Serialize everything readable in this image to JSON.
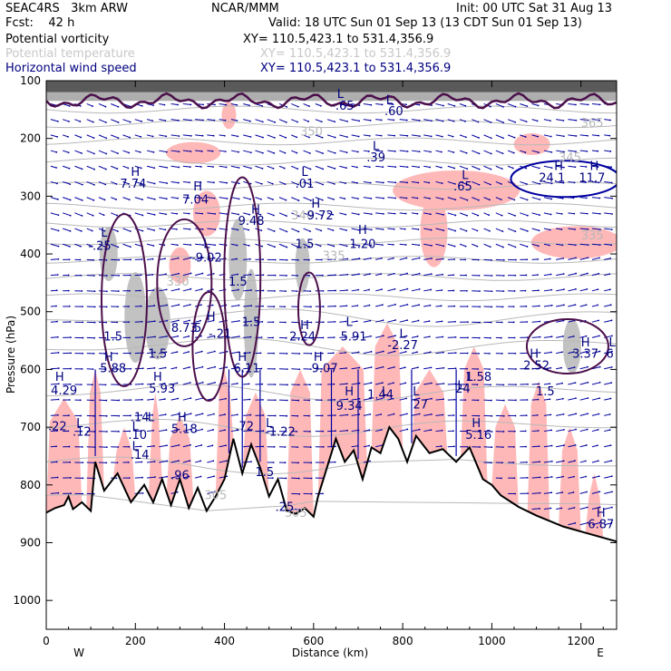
{
  "header": {
    "model": "SEAC4RS   3km ARW",
    "org": "NCAR/MMM",
    "init": "Init: 00 UTC Sat 31 Aug 13",
    "fcst": "Fcst:    42 h",
    "valid": "Valid: 18 UTC Sun 01 Sep 13 (13 CDT Sun 01 Sep 13)",
    "fields": [
      {
        "label": "Potential vorticity",
        "xy": "XY= 110.5,423.1 to 531.4,356.9",
        "color": "#000000"
      },
      {
        "label": "Potential temperature",
        "xy": "XY= 110.5,423.1 to 531.4,356.9",
        "color": "#c8c8c8"
      },
      {
        "label": "Horizontal wind speed",
        "xy": "XY= 110.5,423.1 to 531.4,356.9",
        "color": "#000080"
      }
    ]
  },
  "chart_data": {
    "type": "cross-section",
    "xlabel": "Distance (km)",
    "ylabel": "Pressure (hPa)",
    "xlim": [
      0,
      1280
    ],
    "ylim": [
      100,
      1050
    ],
    "x_ticks": [
      0,
      200,
      400,
      600,
      800,
      1000,
      1200
    ],
    "y_ticks": [
      100,
      200,
      300,
      400,
      500,
      600,
      700,
      800,
      900,
      1000
    ],
    "x_end_labels": {
      "left": "W",
      "right": "E"
    },
    "colors": {
      "pv_fill": "#ffb8b8",
      "pv_contour": "#4b0f4b",
      "theta": "#b8b8b8",
      "wind": "#0000a0",
      "terrain": "#000000",
      "shade": "#9a9a9a"
    },
    "terrain_surface": [
      [
        0,
        848
      ],
      [
        20,
        840
      ],
      [
        40,
        835
      ],
      [
        50,
        820
      ],
      [
        60,
        842
      ],
      [
        80,
        830
      ],
      [
        100,
        845
      ],
      [
        110,
        760
      ],
      [
        130,
        810
      ],
      [
        160,
        780
      ],
      [
        190,
        830
      ],
      [
        220,
        800
      ],
      [
        240,
        830
      ],
      [
        260,
        790
      ],
      [
        280,
        835
      ],
      [
        300,
        790
      ],
      [
        320,
        840
      ],
      [
        340,
        805
      ],
      [
        360,
        845
      ],
      [
        380,
        820
      ],
      [
        400,
        790
      ],
      [
        420,
        720
      ],
      [
        440,
        780
      ],
      [
        460,
        730
      ],
      [
        480,
        770
      ],
      [
        500,
        820
      ],
      [
        520,
        790
      ],
      [
        540,
        845
      ],
      [
        560,
        850
      ],
      [
        580,
        840
      ],
      [
        600,
        855
      ],
      [
        610,
        820
      ],
      [
        630,
        770
      ],
      [
        650,
        720
      ],
      [
        670,
        760
      ],
      [
        690,
        740
      ],
      [
        710,
        790
      ],
      [
        730,
        735
      ],
      [
        750,
        745
      ],
      [
        770,
        700
      ],
      [
        790,
        720
      ],
      [
        810,
        760
      ],
      [
        830,
        715
      ],
      [
        860,
        745
      ],
      [
        890,
        738
      ],
      [
        920,
        760
      ],
      [
        950,
        735
      ],
      [
        980,
        790
      ],
      [
        1000,
        800
      ],
      [
        1020,
        818
      ],
      [
        1060,
        838
      ],
      [
        1100,
        853
      ],
      [
        1160,
        872
      ],
      [
        1220,
        885
      ],
      [
        1280,
        898
      ]
    ],
    "theta_levels": [
      {
        "label": "350",
        "x": 570,
        "p": 195
      },
      {
        "label": "365",
        "x": 1200,
        "p": 180
      },
      {
        "label": "345",
        "x": 1150,
        "p": 240
      },
      {
        "label": "340",
        "x": 550,
        "p": 340
      },
      {
        "label": "335",
        "x": 1200,
        "p": 375
      },
      {
        "label": "335",
        "x": 620,
        "p": 410
      },
      {
        "label": "330",
        "x": 270,
        "p": 455
      },
      {
        "label": "305",
        "x": 535,
        "p": 855
      },
      {
        "label": "305",
        "x": 355,
        "p": 825
      }
    ],
    "pv_annotations": [
      {
        "label": "L",
        "x": 660,
        "p": 130
      },
      {
        "label": ".65",
        "x": 670,
        "p": 150
      },
      {
        "label": "L",
        "x": 770,
        "p": 140
      },
      {
        "label": ".60",
        "x": 780,
        "p": 160
      },
      {
        "label": "L",
        "x": 740,
        "p": 220
      },
      {
        "label": ".39",
        "x": 740,
        "p": 240
      },
      {
        "label": "H",
        "x": 200,
        "p": 265
      },
      {
        "label": "7.74",
        "x": 195,
        "p": 285
      },
      {
        "label": "H",
        "x": 340,
        "p": 290
      },
      {
        "label": "7.04",
        "x": 335,
        "p": 313
      },
      {
        "label": "L",
        "x": 580,
        "p": 265
      },
      {
        "label": ".01",
        "x": 580,
        "p": 285
      },
      {
        "label": "L",
        "x": 940,
        "p": 270
      },
      {
        "label": ".65",
        "x": 935,
        "p": 290
      },
      {
        "label": "H",
        "x": 1150,
        "p": 255
      },
      {
        "label": "24.1",
        "x": 1135,
        "p": 275
      },
      {
        "label": "H",
        "x": 1230,
        "p": 255
      },
      {
        "label": "11.7",
        "x": 1225,
        "p": 275
      },
      {
        "label": "H",
        "x": 470,
        "p": 330
      },
      {
        "label": "9.48",
        "x": 460,
        "p": 350
      },
      {
        "label": "H",
        "x": 605,
        "p": 320
      },
      {
        "label": "9.72",
        "x": 615,
        "p": 340
      },
      {
        "label": "L",
        "x": 130,
        "p": 370
      },
      {
        "label": "-.25",
        "x": 120,
        "p": 393
      },
      {
        "label": "L",
        "x": 360,
        "p": 390
      },
      {
        "label": "-9.02",
        "x": 360,
        "p": 413
      },
      {
        "label": "H",
        "x": 710,
        "p": 365
      },
      {
        "label": "1.20",
        "x": 710,
        "p": 390
      },
      {
        "label": "1.5",
        "x": 580,
        "p": 390
      },
      {
        "label": "1.5",
        "x": 430,
        "p": 455
      },
      {
        "label": "H",
        "x": 370,
        "p": 515
      },
      {
        "label": "8.73",
        "x": 310,
        "p": 535
      },
      {
        "label": "5",
        "x": 340,
        "p": 535
      },
      {
        "label": "H",
        "x": 580,
        "p": 530
      },
      {
        "label": "2.24",
        "x": 575,
        "p": 550
      },
      {
        "label": "L",
        "x": 680,
        "p": 525
      },
      {
        "label": "5.91",
        "x": 690,
        "p": 550
      },
      {
        "label": "L",
        "x": 800,
        "p": 545
      },
      {
        "label": "-2.27",
        "x": 800,
        "p": 565
      },
      {
        "label": "1.5",
        "x": 150,
        "p": 550
      },
      {
        "label": "1.5",
        "x": 250,
        "p": 580
      },
      {
        "label": "-.21",
        "x": 390,
        "p": 545
      },
      {
        "label": "1.5",
        "x": 460,
        "p": 525
      },
      {
        "label": "H",
        "x": 1210,
        "p": 560
      },
      {
        "label": "3.37",
        "x": 1210,
        "p": 580
      },
      {
        "label": "L",
        "x": 1270,
        "p": 560
      },
      {
        "label": "6",
        "x": 1265,
        "p": 580
      },
      {
        "label": "H",
        "x": 140,
        "p": 585
      },
      {
        "label": "5.88",
        "x": 150,
        "p": 605
      },
      {
        "label": "H",
        "x": 440,
        "p": 585
      },
      {
        "label": "6.11",
        "x": 450,
        "p": 605
      },
      {
        "label": "H",
        "x": 610,
        "p": 585
      },
      {
        "label": "9.07",
        "x": 625,
        "p": 605
      },
      {
        "label": "H",
        "x": 1095,
        "p": 580
      },
      {
        "label": "2.52",
        "x": 1100,
        "p": 600
      },
      {
        "label": "H",
        "x": 30,
        "p": 620
      },
      {
        "label": "4.29",
        "x": 40,
        "p": 643
      },
      {
        "label": "H",
        "x": 250,
        "p": 620
      },
      {
        "label": "5.93",
        "x": 260,
        "p": 640
      },
      {
        "label": "L",
        "x": 950,
        "p": 620
      },
      {
        "label": "1.58",
        "x": 970,
        "p": 620
      },
      {
        "label": "L",
        "x": 930,
        "p": 635
      },
      {
        "label": "24",
        "x": 935,
        "p": 640
      },
      {
        "label": "1.5",
        "x": 1120,
        "p": 645
      },
      {
        "label": "H",
        "x": 680,
        "p": 645
      },
      {
        "label": "9.34",
        "x": 680,
        "p": 670
      },
      {
        "label": "L",
        "x": 760,
        "p": 645
      },
      {
        "label": "1.44",
        "x": 750,
        "p": 650
      },
      {
        "label": "L",
        "x": 830,
        "p": 645
      },
      {
        "label": "27",
        "x": 840,
        "p": 668
      },
      {
        "label": "L",
        "x": 235,
        "p": 690
      },
      {
        "label": ".14",
        "x": 210,
        "p": 690
      },
      {
        "label": "H",
        "x": 305,
        "p": 690
      },
      {
        "label": "5.18",
        "x": 310,
        "p": 710
      },
      {
        "label": "L",
        "x": 200,
        "p": 705
      },
      {
        "label": ".10",
        "x": 205,
        "p": 720
      },
      {
        "label": ".22",
        "x": 25,
        "p": 705
      },
      {
        "label": "L",
        "x": 75,
        "p": 700
      },
      {
        "label": ".12",
        "x": 80,
        "p": 715
      },
      {
        "label": ".72",
        "x": 445,
        "p": 705
      },
      {
        "label": "L",
        "x": 500,
        "p": 700
      },
      {
        "label": "-1.22",
        "x": 525,
        "p": 715
      },
      {
        "label": "H",
        "x": 965,
        "p": 700
      },
      {
        "label": "5.16",
        "x": 970,
        "p": 720
      },
      {
        "label": "L",
        "x": 200,
        "p": 740
      },
      {
        "label": ".14",
        "x": 210,
        "p": 755
      },
      {
        "label": ".96",
        "x": 300,
        "p": 790
      },
      {
        "label": "1.5",
        "x": 490,
        "p": 785
      },
      {
        "label": ".25",
        "x": 535,
        "p": 845
      },
      {
        "label": "H",
        "x": 1245,
        "p": 855
      },
      {
        "label": "6.87",
        "x": 1245,
        "p": 875
      }
    ]
  }
}
